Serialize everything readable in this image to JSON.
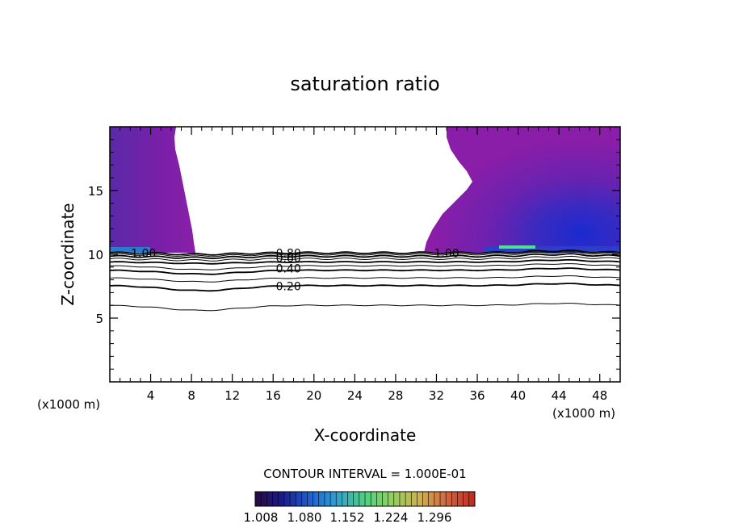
{
  "chart_data": {
    "type": "contour",
    "title": "saturation ratio",
    "xlabel": "X-coordinate",
    "ylabel": "Z-coordinate",
    "x_unit_left": "(x1000 m)",
    "x_unit_right": "(x1000 m)",
    "xlim": [
      0,
      50
    ],
    "ylim": [
      0,
      20
    ],
    "x_ticks": [
      "4",
      "8",
      "12",
      "16",
      "20",
      "24",
      "28",
      "32",
      "36",
      "40",
      "44",
      "48"
    ],
    "x_tick_values": [
      4,
      8,
      12,
      16,
      20,
      24,
      28,
      32,
      36,
      40,
      44,
      48
    ],
    "y_ticks": [
      "5",
      "10",
      "15"
    ],
    "y_tick_values": [
      5,
      10,
      15
    ],
    "contour_interval_text": "CONTOUR INTERVAL = 1.000E-01",
    "contour_levels": [
      0.1,
      0.2,
      0.3,
      0.4,
      0.5,
      0.6,
      0.7,
      0.8,
      0.9,
      1.0
    ],
    "contour_labels": [
      {
        "text": "1.00",
        "x": 3.3,
        "z": 10.1
      },
      {
        "text": "0.80",
        "x": 17.5,
        "z": 10.1
      },
      {
        "text": "0.60",
        "x": 17.5,
        "z": 9.7
      },
      {
        "text": "0.40",
        "x": 17.5,
        "z": 8.9
      },
      {
        "text": "0.20",
        "x": 17.5,
        "z": 7.5
      },
      {
        "text": "1.00",
        "x": 33.0,
        "z": 10.1
      }
    ],
    "colorbar": {
      "tick_labels": [
        "1.008",
        "1.080",
        "1.152",
        "1.224",
        "1.296"
      ],
      "min": 1.0,
      "max": 1.35,
      "colors": [
        "#3a0a4a",
        "#1a1a8a",
        "#2a4ad0",
        "#30a0e0",
        "#40d0a0",
        "#60e060",
        "#b0d050",
        "#d0a040",
        "#d06030",
        "#c03020"
      ]
    },
    "fill_base_color": "#7a2aa8"
  }
}
